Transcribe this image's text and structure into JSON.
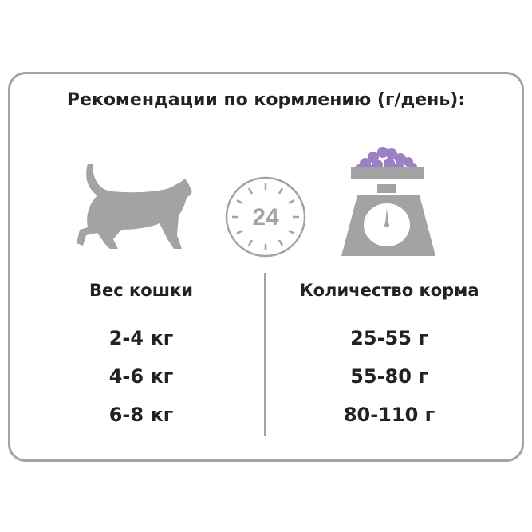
{
  "title": "Рекомендации по кормлению (г/день):",
  "clock_label": "24",
  "colors": {
    "gray": "#a3a3a3",
    "food": "#9b80c6",
    "text": "#222222"
  },
  "weight_column": {
    "header": "Вес кошки",
    "values": [
      "2-4 кг",
      "4-6 кг",
      "6-8 кг"
    ]
  },
  "amount_column": {
    "header": "Количество корма",
    "values": [
      "25-55 г",
      "55-80 г",
      "80-110 г"
    ]
  }
}
